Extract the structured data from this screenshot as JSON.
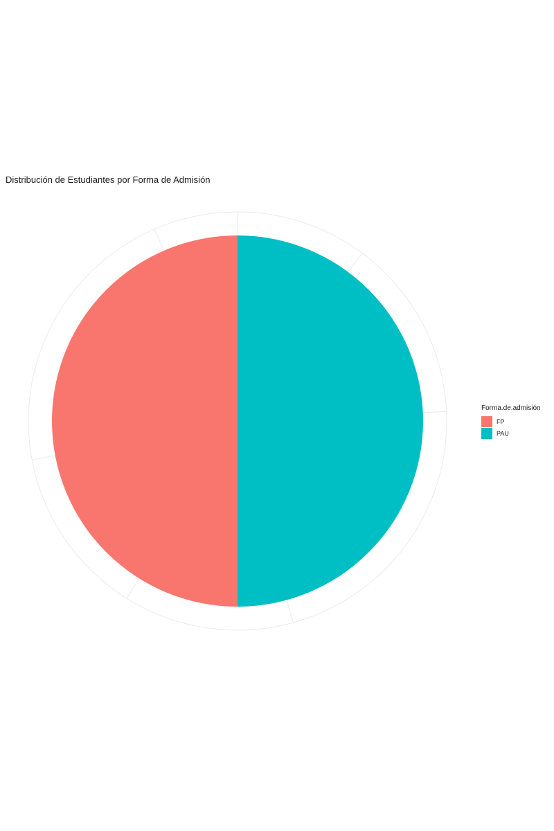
{
  "chart_data": {
    "type": "pie",
    "title": "Distribución de Estudiantes por Forma de Admisión",
    "legend_title": "Forma.de.admisión",
    "legend_position": "right",
    "grid": true,
    "slices": [
      {
        "label": "FP",
        "value": 50,
        "color": "#F8766D"
      },
      {
        "label": "PAU",
        "value": 50,
        "color": "#00BFC4"
      }
    ]
  }
}
